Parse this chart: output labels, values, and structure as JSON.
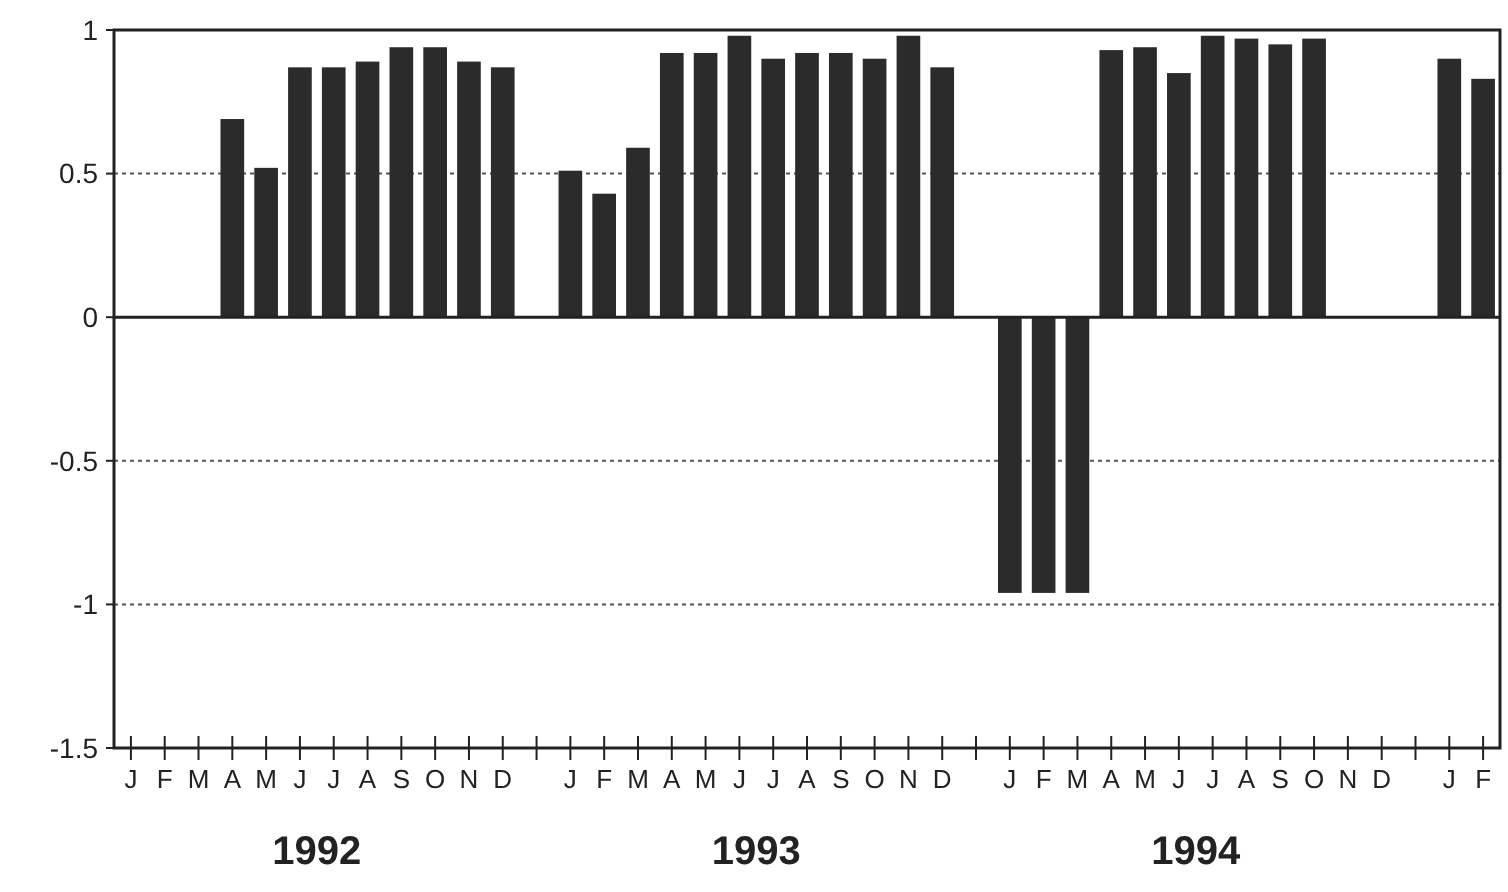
{
  "chart_data": {
    "type": "bar",
    "categories": [
      "J",
      "F",
      "M",
      "A",
      "M",
      "J",
      "J",
      "A",
      "S",
      "O",
      "N",
      "D",
      null,
      "J",
      "F",
      "M",
      "A",
      "M",
      "J",
      "J",
      "A",
      "S",
      "O",
      "N",
      "D",
      null,
      "J",
      "F",
      "M",
      "A",
      "M",
      "J",
      "J",
      "A",
      "S",
      "O",
      "N",
      "D",
      null,
      "J",
      "F"
    ],
    "values": [
      null,
      null,
      null,
      0.69,
      0.52,
      0.87,
      0.87,
      0.89,
      0.94,
      0.94,
      0.89,
      0.87,
      null,
      0.51,
      0.43,
      0.59,
      0.92,
      0.92,
      0.98,
      0.9,
      0.92,
      0.92,
      0.9,
      0.98,
      0.87,
      null,
      -0.96,
      -0.96,
      -0.96,
      0.93,
      0.94,
      0.85,
      0.98,
      0.97,
      0.95,
      0.97,
      null,
      null,
      null,
      0.9,
      0.83
    ],
    "color": "#2b2b2b",
    "ylim": [
      -1.5,
      1
    ],
    "yticks": [
      {
        "value": -1.5,
        "label": "-1.5"
      },
      -1,
      {
        "value": -0.5,
        "label": "-0.5"
      },
      0,
      {
        "value": 0.5,
        "label": "0.5"
      },
      1
    ],
    "grid": "y",
    "annotations": [
      "1992",
      "1993",
      "1994"
    ]
  }
}
